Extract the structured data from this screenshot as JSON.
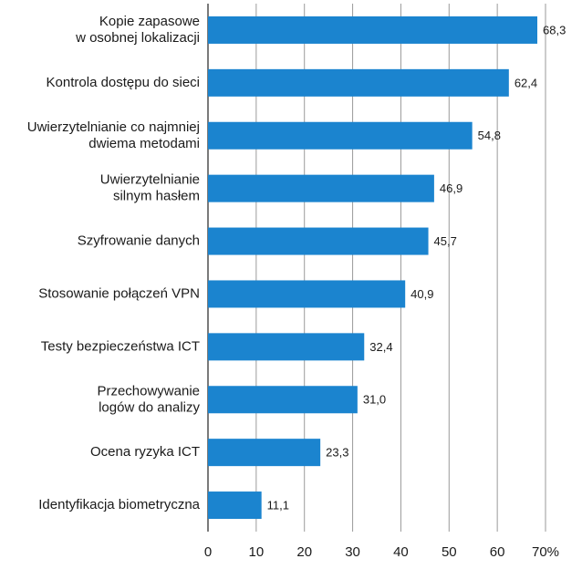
{
  "chart_data": {
    "type": "bar",
    "orientation": "horizontal",
    "categories": [
      "Kopie zapasowe\nw osobnej lokalizacji",
      "Kontrola dostępu do sieci",
      "Uwierzytelnianie co najmniej\ndwiema metodami",
      "Uwierzytelnianie\nsilnym hasłem",
      "Szyfrowanie danych",
      "Stosowanie połączeń VPN",
      "Testy bezpieczeństwa ICT",
      "Przechowywanie\nlogów do analizy",
      "Ocena ryzyka ICT",
      "Identyfikacja biometryczna"
    ],
    "values": [
      68.3,
      62.4,
      54.8,
      46.9,
      45.7,
      40.9,
      32.4,
      31.0,
      23.3,
      11.1
    ],
    "value_labels": [
      "68,3",
      "62,4",
      "54,8",
      "46,9",
      "45,7",
      "40,9",
      "32,4",
      "31,0",
      "23,3",
      "11,1"
    ],
    "color": "#1b84cf",
    "xlim": [
      0,
      70
    ],
    "xticks": [
      0,
      10,
      20,
      30,
      40,
      50,
      60,
      {
        "value": 70,
        "label": "70%"
      }
    ],
    "grid": true
  }
}
